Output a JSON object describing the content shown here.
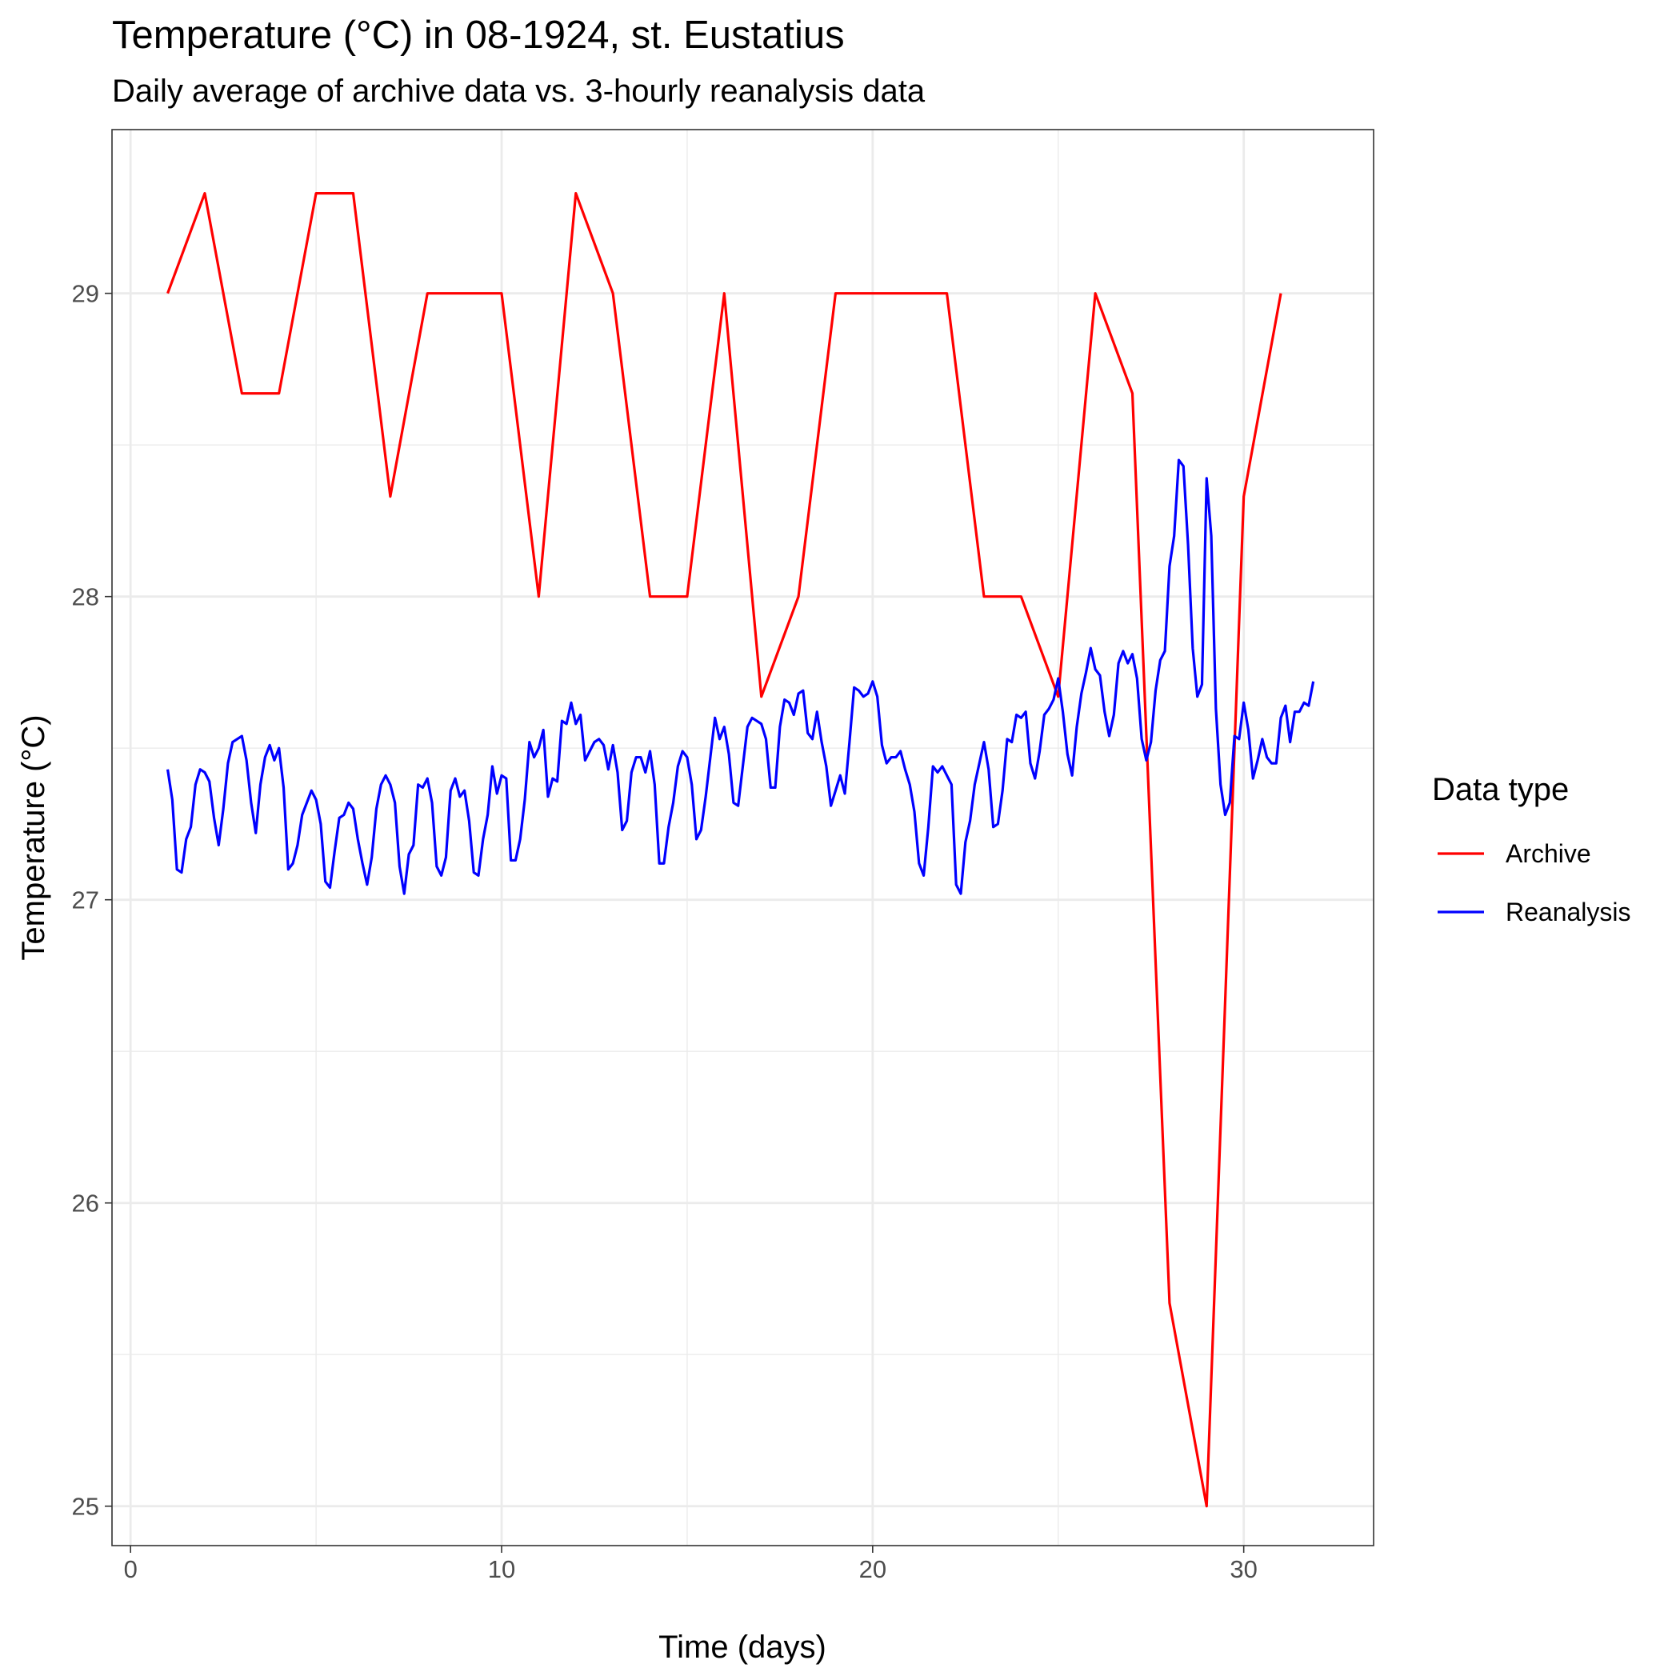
{
  "chart_data": {
    "type": "line",
    "title": "Temperature (°C) in 08-1924, st. Eustatius",
    "subtitle": "Daily average of archive data vs. 3-hourly reanalysis data",
    "xlabel": "Time (days)",
    "ylabel": "Temperature (°C)",
    "xlim": [
      -0.5,
      33.5
    ],
    "ylim": [
      24.87,
      29.54
    ],
    "x_ticks": [
      0,
      10,
      20,
      30
    ],
    "y_ticks": [
      25,
      26,
      27,
      28,
      29
    ],
    "grid": true,
    "legend": {
      "title": "Data type",
      "position": "right"
    },
    "series": [
      {
        "name": "Archive",
        "color": "#ff0000",
        "x": [
          1,
          2,
          3,
          4,
          5,
          6,
          7,
          8,
          9,
          10,
          11,
          12,
          13,
          14,
          15,
          16,
          17,
          18,
          19,
          20,
          21,
          22,
          23,
          24,
          25,
          26,
          27,
          28,
          29,
          30,
          31
        ],
        "y": [
          29.0,
          29.33,
          28.67,
          28.67,
          29.33,
          29.33,
          28.33,
          29.0,
          29.0,
          29.0,
          28.0,
          29.33,
          29.0,
          28.0,
          28.0,
          29.0,
          27.67,
          28.0,
          29.0,
          29.0,
          29.0,
          29.0,
          28.0,
          28.0,
          27.67,
          29.0,
          28.67,
          25.67,
          25.0,
          28.33,
          29.0
        ]
      },
      {
        "name": "Reanalysis",
        "color": "#0000ff",
        "x": [
          1.0,
          1.125,
          1.25,
          1.375,
          1.5,
          1.625,
          1.75,
          1.875,
          2.0,
          2.125,
          2.25,
          2.375,
          2.5,
          2.625,
          2.75,
          2.875,
          3.0,
          3.125,
          3.25,
          3.375,
          3.5,
          3.625,
          3.75,
          3.875,
          4.0,
          4.125,
          4.25,
          4.375,
          4.5,
          4.625,
          4.75,
          4.875,
          5.0,
          5.125,
          5.25,
          5.375,
          5.5,
          5.625,
          5.75,
          5.875,
          6.0,
          6.125,
          6.25,
          6.375,
          6.5,
          6.625,
          6.75,
          6.875,
          7.0,
          7.125,
          7.25,
          7.375,
          7.5,
          7.625,
          7.75,
          7.875,
          8.0,
          8.125,
          8.25,
          8.375,
          8.5,
          8.625,
          8.75,
          8.875,
          9.0,
          9.125,
          9.25,
          9.375,
          9.5,
          9.625,
          9.75,
          9.875,
          10.0,
          10.125,
          10.25,
          10.375,
          10.5,
          10.625,
          10.75,
          10.875,
          11.0,
          11.125,
          11.25,
          11.375,
          11.5,
          11.625,
          11.75,
          11.875,
          12.0,
          12.125,
          12.25,
          12.375,
          12.5,
          12.625,
          12.75,
          12.875,
          13.0,
          13.125,
          13.25,
          13.375,
          13.5,
          13.625,
          13.75,
          13.875,
          14.0,
          14.125,
          14.25,
          14.375,
          14.5,
          14.625,
          14.75,
          14.875,
          15.0,
          15.125,
          15.25,
          15.375,
          15.5,
          15.625,
          15.75,
          15.875,
          16.0,
          16.125,
          16.25,
          16.375,
          16.5,
          16.625,
          16.75,
          16.875,
          17.0,
          17.125,
          17.25,
          17.375,
          17.5,
          17.625,
          17.75,
          17.875,
          18.0,
          18.125,
          18.25,
          18.375,
          18.5,
          18.625,
          18.75,
          18.875,
          19.0,
          19.125,
          19.25,
          19.375,
          19.5,
          19.625,
          19.75,
          19.875,
          20.0,
          20.125,
          20.25,
          20.375,
          20.5,
          20.625,
          20.75,
          20.875,
          21.0,
          21.125,
          21.25,
          21.375,
          21.5,
          21.625,
          21.75,
          21.875,
          22.0,
          22.125,
          22.25,
          22.375,
          22.5,
          22.625,
          22.75,
          22.875,
          23.0,
          23.125,
          23.25,
          23.375,
          23.5,
          23.625,
          23.75,
          23.875,
          24.0,
          24.125,
          24.25,
          24.375,
          24.5,
          24.625,
          24.75,
          24.875,
          25.0,
          25.125,
          25.25,
          25.375,
          25.5,
          25.625,
          25.75,
          25.875,
          26.0,
          26.125,
          26.25,
          26.375,
          26.5,
          26.625,
          26.75,
          26.875,
          27.0,
          27.125,
          27.25,
          27.375,
          27.5,
          27.625,
          27.75,
          27.875,
          28.0,
          28.125,
          28.25,
          28.375,
          28.5,
          28.625,
          28.75,
          28.875,
          29.0,
          29.125,
          29.25,
          29.375,
          29.5,
          29.625,
          29.75,
          29.875,
          30.0,
          30.125,
          30.25,
          30.375,
          30.5,
          30.625,
          30.75,
          30.875,
          31.0,
          31.125,
          31.25,
          31.375,
          31.5,
          31.625,
          31.75,
          31.875
        ],
        "y": [
          27.43,
          27.33,
          27.1,
          27.09,
          27.2,
          27.24,
          27.38,
          27.43,
          27.42,
          27.39,
          27.27,
          27.18,
          27.3,
          27.45,
          27.52,
          27.53,
          27.54,
          27.46,
          27.32,
          27.22,
          27.38,
          27.47,
          27.51,
          27.46,
          27.5,
          27.37,
          27.1,
          27.12,
          27.18,
          27.28,
          27.32,
          27.36,
          27.33,
          27.25,
          27.06,
          27.04,
          27.16,
          27.27,
          27.28,
          27.32,
          27.3,
          27.2,
          27.12,
          27.05,
          27.14,
          27.3,
          27.38,
          27.41,
          27.38,
          27.32,
          27.11,
          27.02,
          27.15,
          27.18,
          27.38,
          27.37,
          27.4,
          27.32,
          27.11,
          27.08,
          27.14,
          27.36,
          27.4,
          27.34,
          27.36,
          27.26,
          27.09,
          27.08,
          27.2,
          27.28,
          27.44,
          27.35,
          27.41,
          27.4,
          27.13,
          27.13,
          27.2,
          27.33,
          27.52,
          27.47,
          27.5,
          27.56,
          27.34,
          27.4,
          27.39,
          27.59,
          27.58,
          27.65,
          27.58,
          27.61,
          27.46,
          27.49,
          27.52,
          27.53,
          27.51,
          27.43,
          27.51,
          27.42,
          27.23,
          27.26,
          27.42,
          27.47,
          27.47,
          27.42,
          27.49,
          27.38,
          27.12,
          27.12,
          27.24,
          27.32,
          27.44,
          27.49,
          27.47,
          27.38,
          27.2,
          27.23,
          27.34,
          27.47,
          27.6,
          27.53,
          27.57,
          27.48,
          27.32,
          27.31,
          27.44,
          27.57,
          27.6,
          27.59,
          27.58,
          27.53,
          27.37,
          27.37,
          27.57,
          27.66,
          27.65,
          27.61,
          27.68,
          27.69,
          27.55,
          27.53,
          27.62,
          27.52,
          27.44,
          27.31,
          27.36,
          27.41,
          27.35,
          27.52,
          27.7,
          27.69,
          27.67,
          27.68,
          27.72,
          27.67,
          27.51,
          27.45,
          27.47,
          27.47,
          27.49,
          27.43,
          27.38,
          27.29,
          27.12,
          27.08,
          27.24,
          27.44,
          27.42,
          27.44,
          27.41,
          27.38,
          27.05,
          27.02,
          27.19,
          27.26,
          27.38,
          27.45,
          27.52,
          27.43,
          27.24,
          27.25,
          27.36,
          27.53,
          27.52,
          27.61,
          27.6,
          27.62,
          27.45,
          27.4,
          27.49,
          27.61,
          27.63,
          27.66,
          27.73,
          27.62,
          27.48,
          27.41,
          27.57,
          27.68,
          27.75,
          27.83,
          27.76,
          27.74,
          27.62,
          27.54,
          27.61,
          27.78,
          27.82,
          27.78,
          27.81,
          27.73,
          27.53,
          27.46,
          27.52,
          27.69,
          27.79,
          27.82,
          28.1,
          28.2,
          28.45,
          28.43,
          28.17,
          27.83,
          27.67,
          27.71,
          28.39,
          28.2,
          27.63,
          27.38,
          27.28,
          27.32,
          27.54,
          27.53,
          27.65,
          27.56,
          27.4,
          27.46,
          27.53,
          27.47,
          27.45,
          27.45,
          27.6,
          27.64,
          27.52,
          27.62,
          27.62,
          27.65,
          27.64,
          27.72
        ]
      }
    ]
  }
}
